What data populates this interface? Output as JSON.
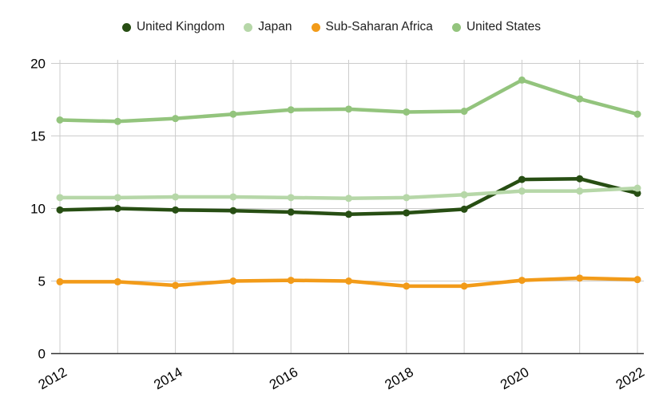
{
  "chart_data": {
    "type": "line",
    "title": "",
    "xlabel": "",
    "ylabel": "",
    "x": [
      2012,
      2013,
      2014,
      2015,
      2016,
      2017,
      2018,
      2019,
      2020,
      2021,
      2022
    ],
    "x_tick_labels": [
      "2012",
      "2014",
      "2016",
      "2018",
      "2020",
      "2022"
    ],
    "y_ticks": [
      0,
      5,
      10,
      15,
      20
    ],
    "ylim": [
      0,
      20
    ],
    "grid": true,
    "legend_position": "top",
    "series": [
      {
        "name": "United Kingdom",
        "color": "#274e13",
        "values": [
          9.9,
          10.0,
          9.9,
          9.85,
          9.75,
          9.6,
          9.7,
          9.95,
          12.0,
          12.05,
          11.05
        ]
      },
      {
        "name": "Japan",
        "color": "#b6d7a8",
        "values": [
          10.75,
          10.75,
          10.8,
          10.8,
          10.75,
          10.7,
          10.75,
          10.95,
          11.2,
          11.2,
          11.4
        ]
      },
      {
        "name": "Sub-Saharan Africa",
        "color": "#f29b19",
        "values": [
          4.95,
          4.95,
          4.7,
          5.0,
          5.05,
          5.0,
          4.65,
          4.65,
          5.05,
          5.2,
          5.1
        ]
      },
      {
        "name": "United States",
        "color": "#93c47d",
        "values": [
          16.1,
          16.0,
          16.2,
          16.5,
          16.8,
          16.85,
          16.65,
          16.7,
          18.85,
          17.55,
          16.5
        ]
      }
    ]
  },
  "style": {
    "grid_color": "#cccccc",
    "axis_color": "#333333",
    "tick_label_color": "#000000",
    "legend_text_color": "#1f1f1f",
    "background": "#ffffff"
  }
}
